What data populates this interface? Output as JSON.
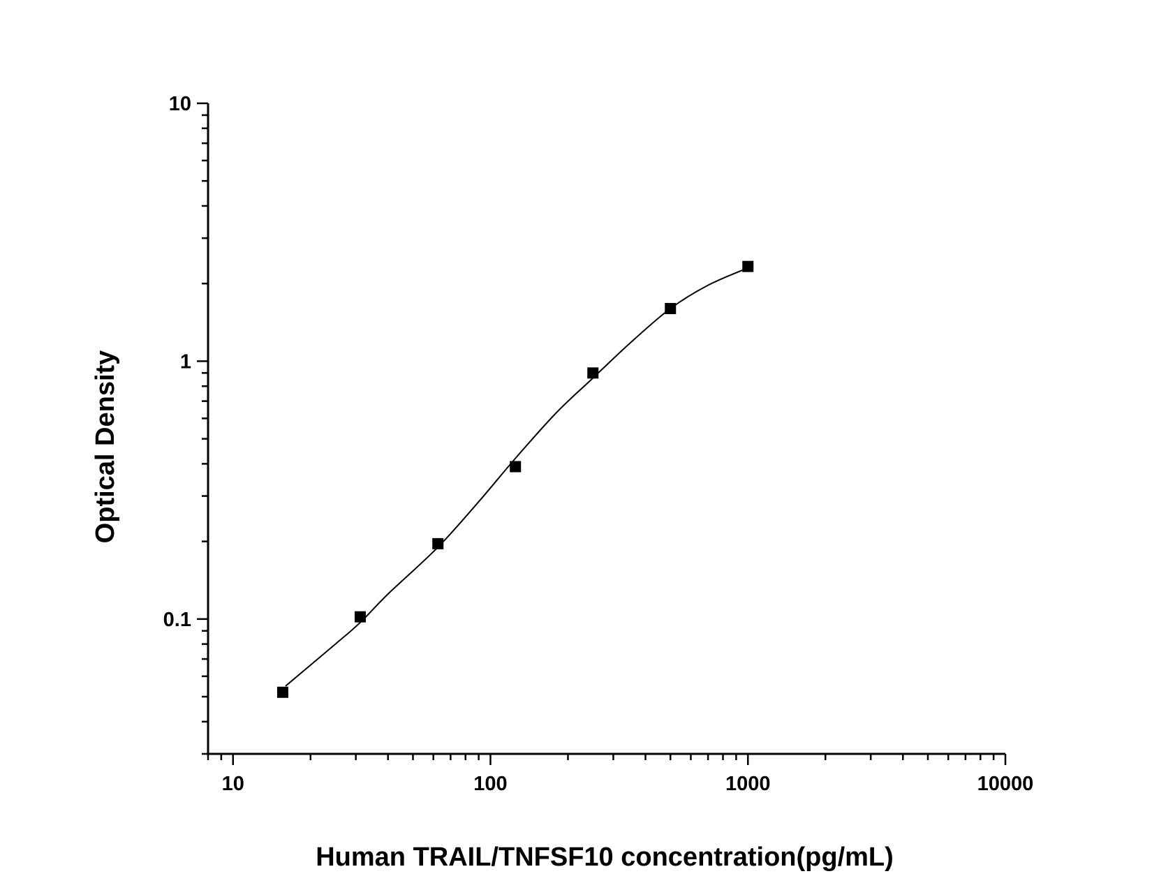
{
  "chart_data": {
    "type": "scatter",
    "title": "",
    "xlabel": "Human TRAIL/TNFSF10 concentration(pg/mL)",
    "ylabel": "Optical Density",
    "xscale": "log",
    "yscale": "log",
    "xlim": [
      8,
      10000
    ],
    "ylim": [
      0.03,
      10
    ],
    "x_ticks": [
      10,
      100,
      1000,
      10000
    ],
    "x_tick_labels": [
      "10",
      "100",
      "1000",
      "10000"
    ],
    "y_ticks": [
      0.1,
      1,
      10
    ],
    "y_tick_labels": [
      "0.1",
      "1",
      "10"
    ],
    "grid": false,
    "legend": "none",
    "marker": "square",
    "color": "#000000",
    "series": [
      {
        "x": [
          15.6,
          31.2,
          62.5,
          125,
          250,
          500,
          1000
        ],
        "y": [
          0.052,
          0.102,
          0.196,
          0.39,
          0.9,
          1.6,
          2.33
        ]
      }
    ],
    "fit_curve": {
      "type": "smooth",
      "x": [
        16,
        25,
        31.2,
        40,
        62.5,
        90,
        125,
        180,
        250,
        350,
        500,
        700,
        1000
      ],
      "y": [
        0.055,
        0.08,
        0.097,
        0.125,
        0.19,
        0.285,
        0.42,
        0.63,
        0.86,
        1.18,
        1.6,
        1.97,
        2.3
      ]
    }
  }
}
